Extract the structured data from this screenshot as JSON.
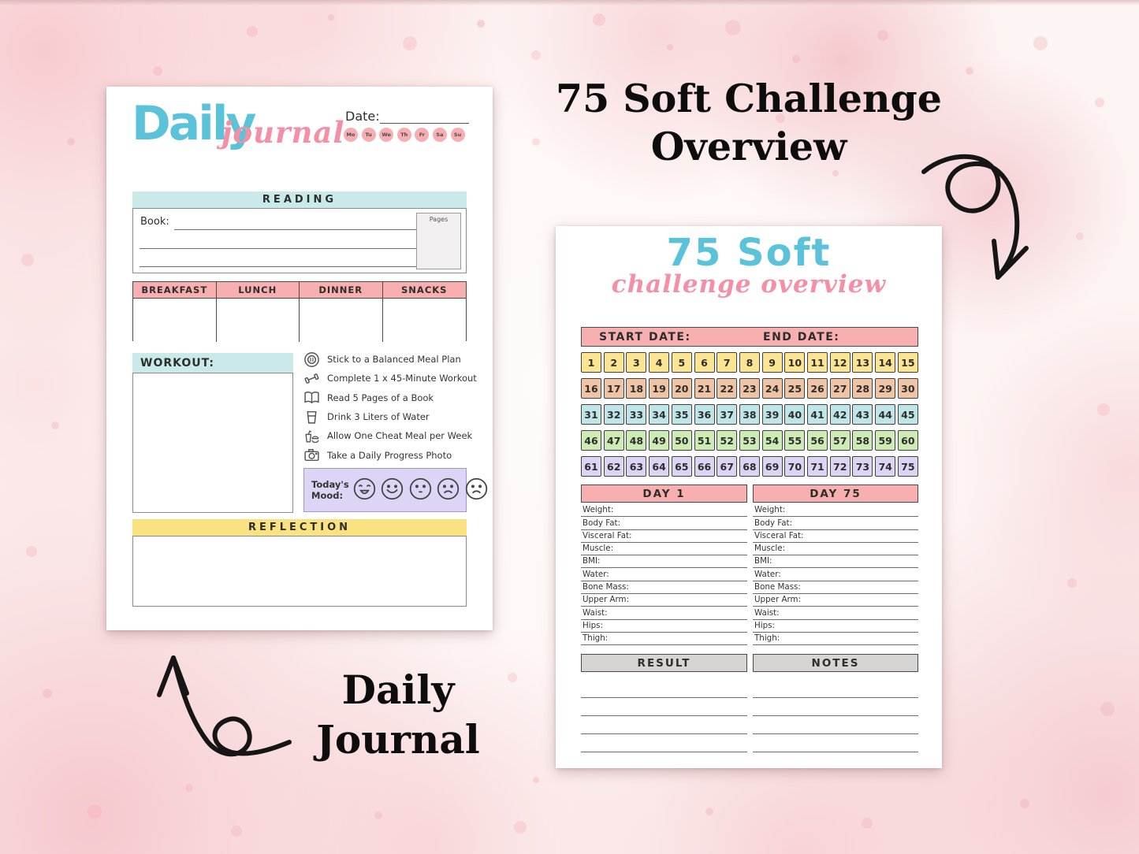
{
  "colors": {
    "blue_logo": "#5bc3d9",
    "pink_script": "#f48fa5",
    "pink_header": "#f7afb0",
    "teal_header": "#c9eae8",
    "yellow_header": "#f9e282",
    "purple_mood": "#ded4f5",
    "gray_header": "#d7d4d4",
    "day_circle": "#f6aeb2",
    "row_yellow": "#fbe592",
    "row_peach": "#efc4a4",
    "row_blue": "#bfe5e9",
    "row_green": "#cdebb5",
    "row_purple": "#ddd3f2"
  },
  "annotations": {
    "right_title_line1": "75 Soft Challenge",
    "right_title_line2": "Overview",
    "left_title_line1": "Daily",
    "left_title_line2": "Journal"
  },
  "left_page": {
    "logo_main": "Daily",
    "logo_script": "journal",
    "date_label": "Date:",
    "days": [
      "Mo",
      "Tu",
      "We",
      "Th",
      "Fr",
      "Sa",
      "Su"
    ],
    "reading": {
      "header": "READING",
      "book_label": "Book:",
      "pages_label": "Pages"
    },
    "meal_headers": [
      "BREAKFAST",
      "LUNCH",
      "DINNER",
      "SNACKS"
    ],
    "workout_label": "WORKOUT:",
    "checklist": [
      {
        "icon": "plate-icon",
        "text": "Stick to a Balanced Meal Plan"
      },
      {
        "icon": "dumbbell-icon",
        "text": "Complete 1 x 45-Minute Workout"
      },
      {
        "icon": "open-book-icon",
        "text": "Read 5 Pages of a Book"
      },
      {
        "icon": "water-cup-icon",
        "text": "Drink 3 Liters of Water"
      },
      {
        "icon": "fast-food-icon",
        "text": "Allow One Cheat Meal per Week"
      },
      {
        "icon": "camera-icon",
        "text": "Take a Daily Progress Photo"
      }
    ],
    "mood_label": "Today's Mood:",
    "moods": [
      "laughing",
      "smiling",
      "neutral",
      "frowning",
      "sad"
    ],
    "reflection_header": "REFLECTION"
  },
  "right_page": {
    "logo_main": "75 Soft",
    "logo_script": "challenge overview",
    "start_date_label": "START DATE:",
    "end_date_label": "END DATE:",
    "tracker_rows": [
      {
        "color_key": "row_yellow",
        "numbers": [
          1,
          2,
          3,
          4,
          5,
          6,
          7,
          8,
          9,
          10,
          11,
          12,
          13,
          14,
          15
        ]
      },
      {
        "color_key": "row_peach",
        "numbers": [
          16,
          17,
          18,
          19,
          20,
          21,
          22,
          23,
          24,
          25,
          26,
          27,
          28,
          29,
          30
        ]
      },
      {
        "color_key": "row_blue",
        "numbers": [
          31,
          32,
          33,
          34,
          35,
          36,
          37,
          38,
          39,
          40,
          41,
          42,
          43,
          44,
          45
        ]
      },
      {
        "color_key": "row_green",
        "numbers": [
          46,
          47,
          48,
          49,
          50,
          51,
          52,
          53,
          54,
          55,
          56,
          57,
          58,
          59,
          60
        ]
      },
      {
        "color_key": "row_purple",
        "numbers": [
          61,
          62,
          63,
          64,
          65,
          66,
          67,
          68,
          69,
          70,
          71,
          72,
          73,
          74,
          75
        ]
      }
    ],
    "day1_header": "DAY 1",
    "day75_header": "DAY 75",
    "measurement_fields": [
      "Weight:",
      "Body Fat:",
      "Visceral Fat:",
      "Muscle:",
      "BMI:",
      "Water:",
      "Bone Mass:",
      "Upper Arm:",
      "Waist:",
      "Hips:",
      "Thigh:"
    ],
    "result_header": "RESULT",
    "notes_header": "NOTES",
    "note_lines": 4
  }
}
